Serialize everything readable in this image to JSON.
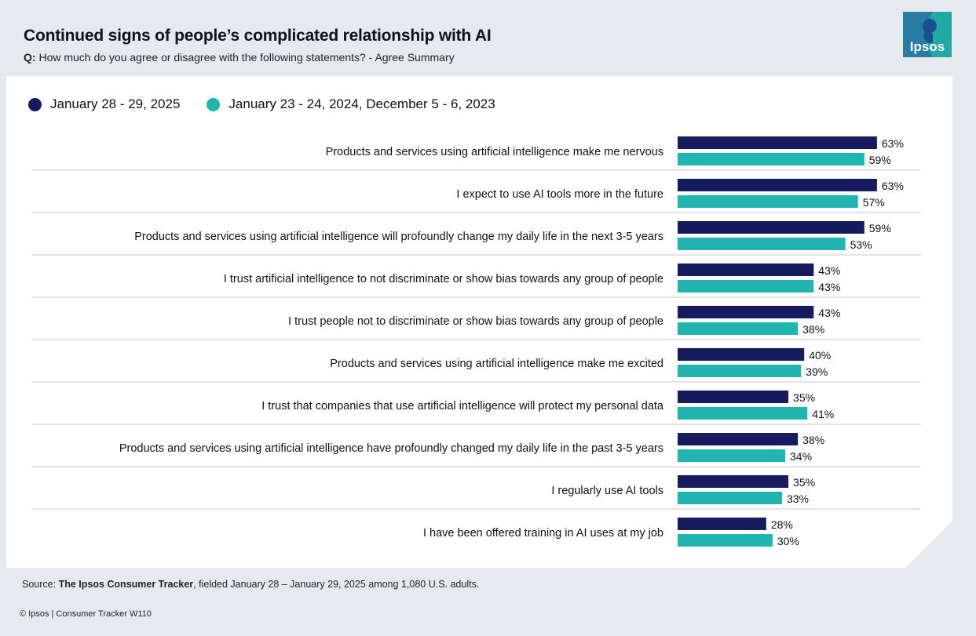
{
  "header": {
    "title": "Continued signs of people’s complicated relationship with AI",
    "question_prefix": "Q:",
    "question": "How much do you agree or disagree with the following statements? - Agree Summary"
  },
  "logo": {
    "text": "Ipsos"
  },
  "colors": {
    "series_2025": "#161a5e",
    "series_2024": "#21b5b0",
    "divider": "#c9c9c9",
    "logo_bg": "#22a9a3"
  },
  "chart_data": {
    "type": "bar",
    "orientation": "horizontal",
    "title": "Continued signs of people’s complicated relationship with AI",
    "categories": [
      "Products and services using artificial intelligence make me nervous",
      "I expect to use AI tools more in the future",
      "Products and services using artificial intelligence will profoundly change my daily life in the next 3-5 years",
      "I trust artificial intelligence to not discriminate or show bias towards any group of people",
      "I trust people not to discriminate or show bias towards any group of people",
      "Products and services using artificial intelligence make me excited",
      "I trust that companies that use artificial intelligence will protect my personal data",
      "Products and services using artificial intelligence have profoundly changed my daily life in the past 3-5 years",
      "I regularly use AI tools",
      "I have been offered training in AI uses at my job"
    ],
    "series": [
      {
        "name": "January 28 - 29, 2025",
        "values": [
          63,
          63,
          59,
          43,
          43,
          40,
          35,
          38,
          35,
          28
        ]
      },
      {
        "name": "January 23 - 24, 2024, December 5 - 6, 2023",
        "values": [
          59,
          57,
          53,
          43,
          38,
          39,
          41,
          34,
          33,
          30
        ]
      }
    ],
    "value_suffix": "%",
    "xlim": [
      0,
      100
    ],
    "legend": "top-left"
  },
  "source": {
    "prefix": "Source:",
    "name": "The Ipsos Consumer Tracker",
    "rest": ", fielded January 28 – January 29, 2025 among 1,080 U.S. adults."
  },
  "footer": {
    "text": "© Ipsos | Consumer Tracker W110"
  }
}
